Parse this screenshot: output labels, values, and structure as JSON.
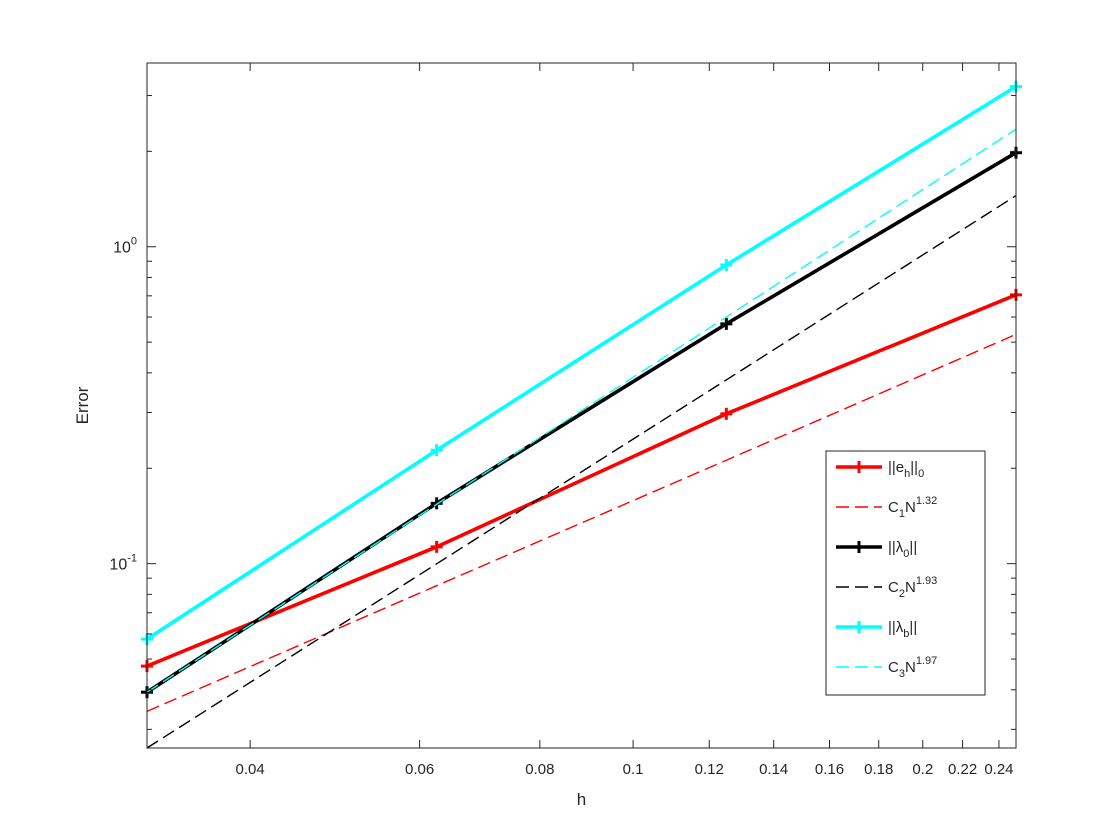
{
  "chart_data": {
    "type": "line",
    "title": "",
    "xlabel": "h",
    "ylabel": "Error",
    "xscale": "log",
    "yscale": "log",
    "xlim": [
      0.03125,
      0.25
    ],
    "ylim": [
      0.0262,
      3.8
    ],
    "grid": false,
    "legend_position": "right",
    "x_ticks": [
      0.04,
      0.06,
      0.08,
      0.1,
      0.12,
      0.14,
      0.16,
      0.18,
      0.2,
      0.22,
      0.24
    ],
    "x_tick_labels": [
      "0.04",
      "0.06",
      "0.08",
      "0.1",
      "0.12",
      "0.14",
      "0.16",
      "0.18",
      "0.2",
      "0.22",
      "0.24"
    ],
    "y_major_ticks": [
      0.1,
      1
    ],
    "y_tick_labels": [
      {
        "base": "10",
        "exp": "-1"
      },
      {
        "base": "10",
        "exp": "0"
      }
    ],
    "x": [
      0.03125,
      0.0625,
      0.125,
      0.25
    ],
    "series": [
      {
        "name": "‖e_h‖_0",
        "label": {
          "pre": "||e",
          "sub": "h",
          "mid": "||",
          "sub2": "0",
          "sup": ""
        },
        "color": "#ff0000",
        "dashed": false,
        "marker": "+",
        "values": [
          0.0475,
          0.113,
          0.297,
          0.705
        ]
      },
      {
        "name": "C_1N^1.32",
        "label": {
          "pre": "C",
          "sub": "1",
          "mid": "N",
          "sub2": "",
          "sup": "1.32"
        },
        "color": "#ff0000",
        "dashed": true,
        "marker": "",
        "values": [
          0.0342,
          0.0852,
          0.212,
          0.529
        ]
      },
      {
        "name": "‖λ_0‖",
        "label": {
          "pre": "||λ",
          "sub": "0",
          "mid": "||",
          "sub2": "",
          "sup": ""
        },
        "color": "#000000",
        "dashed": false,
        "marker": "+",
        "values": [
          0.0393,
          0.155,
          0.571,
          1.98
        ]
      },
      {
        "name": "C_2N^1.93",
        "label": {
          "pre": "C",
          "sub": "2",
          "mid": "N",
          "sub2": "",
          "sup": "1.93"
        },
        "color": "#000000",
        "dashed": true,
        "marker": "",
        "values": [
          0.0262,
          0.0999,
          0.38,
          1.45
        ]
      },
      {
        "name": "‖λ_b‖",
        "label": {
          "pre": "||λ",
          "sub": "b",
          "mid": "||",
          "sub2": "",
          "sup": ""
        },
        "color": "#00ffff",
        "dashed": false,
        "marker": "+",
        "values": [
          0.0578,
          0.228,
          0.876,
          3.2
        ]
      },
      {
        "name": "C_3N^1.97",
        "label": {
          "pre": "C",
          "sub": "3",
          "mid": "N",
          "sub2": "",
          "sup": "1.97"
        },
        "color": "#00ffff",
        "dashed": true,
        "marker": "",
        "values": [
          0.0393,
          0.154,
          0.6,
          2.35
        ]
      }
    ]
  }
}
